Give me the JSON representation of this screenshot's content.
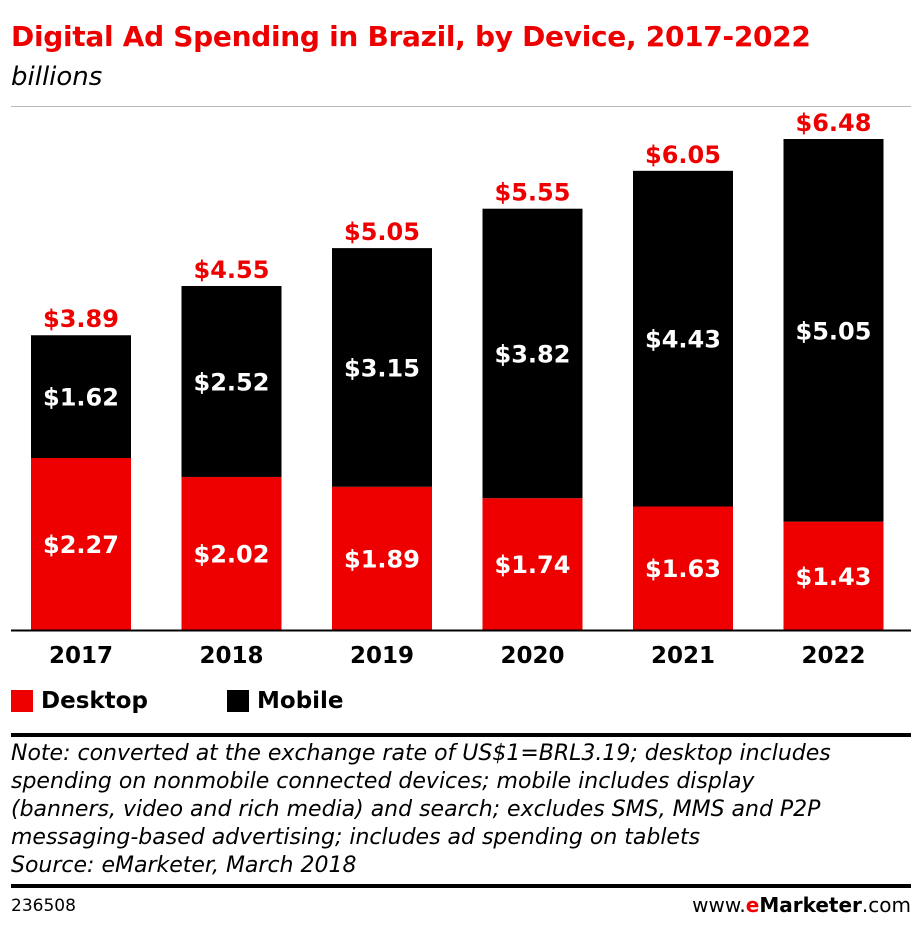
{
  "header": {
    "title": "Digital Ad Spending in Brazil, by Device, 2017-2022",
    "subtitle": "billions"
  },
  "chart_data": {
    "type": "bar",
    "stacked": true,
    "categories": [
      "2017",
      "2018",
      "2019",
      "2020",
      "2021",
      "2022"
    ],
    "series": [
      {
        "name": "Desktop",
        "color": "#ee0000",
        "values": [
          2.27,
          2.02,
          1.89,
          1.74,
          1.63,
          1.43
        ],
        "labels": [
          "$2.27",
          "$2.02",
          "$1.89",
          "$1.74",
          "$1.63",
          "$1.43"
        ]
      },
      {
        "name": "Mobile",
        "color": "#000000",
        "values": [
          1.62,
          2.52,
          3.15,
          3.82,
          4.43,
          5.05
        ],
        "labels": [
          "$1.62",
          "$2.52",
          "$3.15",
          "$3.82",
          "$4.43",
          "$5.05"
        ]
      }
    ],
    "totals": [
      3.89,
      4.55,
      5.05,
      5.55,
      6.05,
      6.48
    ],
    "total_labels": [
      "$3.89",
      "$4.55",
      "$5.05",
      "$5.55",
      "$6.05",
      "$6.48"
    ],
    "total_label_color": "#ee0000",
    "ylim": [
      0,
      6.48
    ],
    "grid": false,
    "legend_position": "bottom-left"
  },
  "notes": {
    "lines": [
      "Note: converted at the exchange rate of US$1=BRL3.19; desktop includes",
      "spending on nonmobile connected devices; mobile includes display",
      "(banners, video and rich media) and search; excludes SMS, MMS and P2P",
      "messaging-based advertising; includes ad spending on tablets",
      "Source: eMarketer, March 2018"
    ]
  },
  "footer": {
    "chart_id": "236508",
    "brand_prefix": "www.",
    "brand_e": "e",
    "brand_name": "Marketer",
    "brand_suffix": ".com"
  }
}
